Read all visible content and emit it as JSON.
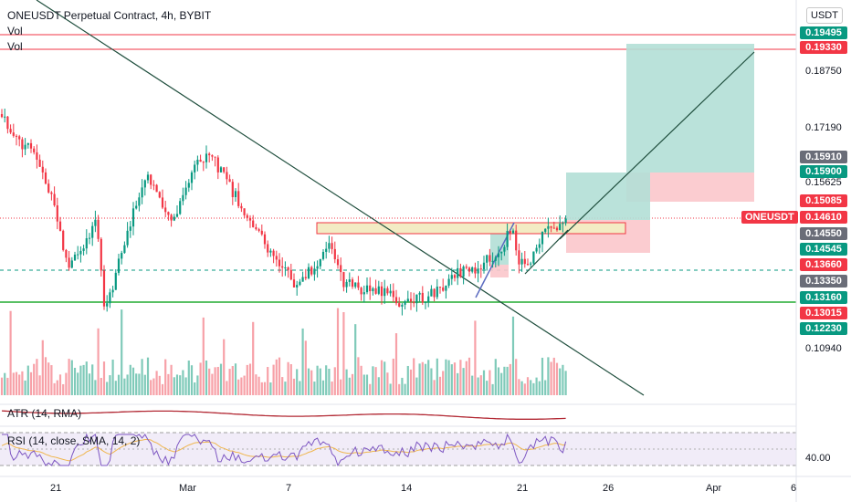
{
  "header": {
    "title": "ONEUSDT Perpetual Contract, 4h, BYBIT",
    "vol_label_1": "Vol",
    "vol_label_2": "Vol"
  },
  "currency_button": "USDT",
  "ticker_badge": "ONEUSDT",
  "price_badges": [
    {
      "text": "0.19495",
      "color": "#089981"
    },
    {
      "text": "0.19330",
      "color": "#f23645"
    },
    {
      "text": "0.15910",
      "color": "#6a6d78"
    },
    {
      "text": "0.15900",
      "color": "#089981"
    },
    {
      "text": "0.15085",
      "color": "#f23645"
    },
    {
      "text": "0.14610",
      "color": "#f23645"
    },
    {
      "text": "0.14550",
      "color": "#6a6d78"
    },
    {
      "text": "0.14545",
      "color": "#089981"
    },
    {
      "text": "0.13660",
      "color": "#f23645"
    },
    {
      "text": "0.13350",
      "color": "#6a6d78"
    },
    {
      "text": "0.13160",
      "color": "#089981"
    },
    {
      "text": "0.13015",
      "color": "#f23645"
    },
    {
      "text": "0.12230",
      "color": "#089981"
    }
  ],
  "price_ticks": [
    "0.18750",
    "0.17190",
    "0.15625",
    "0.10940"
  ],
  "rsi_tick": "40.00",
  "x_axis_ticks": [
    "21",
    "Mar",
    "7",
    "14",
    "21",
    "26",
    "Apr",
    "6"
  ],
  "indicators": {
    "atr_label": "ATR (14, RMA)",
    "rsi_label": "RSI (14, close, SMA, 14, 2)"
  },
  "colors": {
    "up": "#089981",
    "down": "#f23645",
    "trendline": "#1f4e3d",
    "atr": "#b22833",
    "rsi": "#7e57c2",
    "rsi_ma": "#f0b64e",
    "profit_zone": "#b2dfd6",
    "loss_zone": "#fbc7cb"
  }
}
